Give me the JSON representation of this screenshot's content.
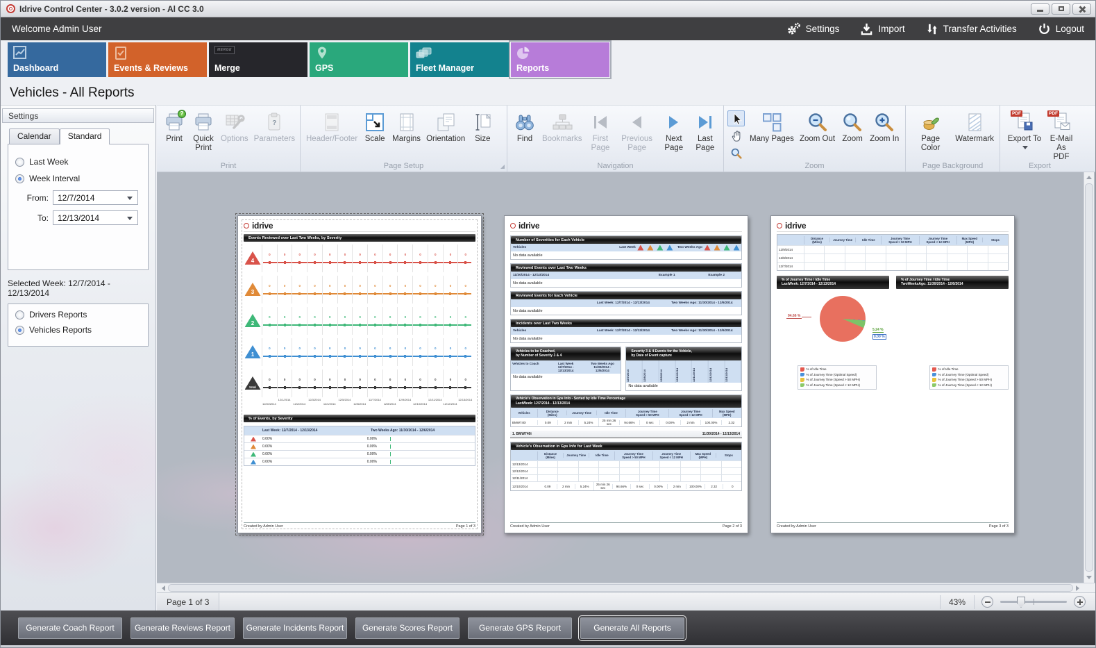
{
  "window": {
    "title": "Idrive Control Center - 3.0.2 version - Al CC 3.0"
  },
  "header": {
    "welcome": "Welcome Admin User",
    "settings": "Settings",
    "import": "Import",
    "transfer": "Transfer Activities",
    "logout": "Logout"
  },
  "tabs": [
    {
      "label": "Dashboard",
      "color": "#35699e"
    },
    {
      "label": "Events & Reviews",
      "color": "#d2622a"
    },
    {
      "label": "Merge",
      "color": "#26262b",
      "badge": "MERGE"
    },
    {
      "label": "GPS",
      "color": "#2aa87c"
    },
    {
      "label": "Fleet Manager",
      "color": "#13828e"
    },
    {
      "label": "Reports",
      "color": "#b77cd9"
    }
  ],
  "page_title": "Vehicles - All Reports",
  "sidebar": {
    "title": "Settings",
    "tab_calendar": "Calendar",
    "tab_standard": "Standard",
    "last_week": "Last Week",
    "week_interval": "Week Interval",
    "from_label": "From:",
    "from_value": "12/7/2014",
    "to_label": "To:",
    "to_value": "12/13/2014",
    "selected_week": "Selected Week: 12/7/2014 - 12/13/2014",
    "drivers": "Drivers Reports",
    "vehicles": "Vehicles Reports"
  },
  "ribbon": {
    "groups": [
      "Print",
      "Page Setup",
      "Navigation",
      "Zoom",
      "Page Background",
      "Export"
    ],
    "print": "Print",
    "quick_print": "Quick Print",
    "options": "Options",
    "parameters": "Parameters",
    "header_footer": "Header/Footer",
    "scale": "Scale",
    "margins": "Margins",
    "orientation": "Orientation",
    "size": "Size",
    "find": "Find",
    "bookmarks": "Bookmarks",
    "first_page": "First Page",
    "previous_page": "Previous Page",
    "next_page": "Next Page",
    "last_page": "Last Page",
    "many_pages": "Many Pages",
    "zoom_out": "Zoom Out",
    "zoom": "Zoom",
    "zoom_in": "Zoom In",
    "page_color": "Page Color",
    "watermark": "Watermark",
    "export_to": "Export To",
    "email_as_pdf": "E-Mail\nAs PDF",
    "pdf_badge": "PDF",
    "question_glyph": "?"
  },
  "brand": "idrive",
  "report1": {
    "banner": "Events Reviewed over Last Two Weeks, by Severity",
    "severities": [
      {
        "badge": "4"
      },
      {
        "badge": "3"
      },
      {
        "badge": "2"
      },
      {
        "badge": "1"
      },
      {
        "badge": "total"
      }
    ],
    "zeros": [
      "0",
      "0",
      "0",
      "0",
      "0",
      "0",
      "0",
      "0",
      "0",
      "0",
      "0",
      "0",
      "0",
      "0"
    ],
    "dates": [
      "11/30/2014",
      "12/1/2014",
      "12/2/2014",
      "12/3/2014",
      "12/4/2014",
      "12/5/2014",
      "12/6/2014",
      "12/7/2014",
      "12/8/2014",
      "12/9/2014",
      "12/10/2014",
      "12/11/2014",
      "12/12/2014",
      "12/13/2014"
    ],
    "banner2": "% of Events, by Severity",
    "col_last_week": "Last Week: 12/7/2014 - 12/13/2014",
    "col_two_weeks": "Two Weeks Ago: 11/30/2014 - 12/6/2014",
    "rows": [
      {
        "left": "0.00%",
        "right": "0.00%"
      },
      {
        "left": "0.00%",
        "right": "0.00%"
      },
      {
        "left": "0.00%",
        "right": "0.00%"
      },
      {
        "left": "0.00%",
        "right": "0.00%"
      }
    ],
    "footer_left": "Created by Admin User",
    "footer_right": "Page 1 of 3"
  },
  "report2": {
    "s1_title": "Number of Severities for Each Vehicle",
    "s1_vehicles": "Vehicles",
    "s1_last_week": "Last Week",
    "s1_two_weeks": "Two Weeks Ago",
    "no_data": "No data available",
    "s2_title": "Reviewed Events over Last Two Weeks",
    "s2_range": "11/30/2014 - 12/13/2014",
    "s2_example1": "Example 1",
    "s2_example2": "Example 2",
    "s3_title": "Reviewed Events for Each Vehicle",
    "s3_last_week": "Last Week: 12/7/2014 - 12/13/2014",
    "s3_two_weeks": "Two Weeks Ago: 11/30/2014 - 12/6/2014",
    "s4_title": "Incidents over Last Two Weeks",
    "s4_vehicles": "Vehicles",
    "s4_last_week": "Last Week: 12/7/2014 - 12/13/2014",
    "s4_two_weeks": "Two Weeks Ago: 11/30/2014 - 12/6/2014",
    "s5_title": "Vehicles to be Coached,\nby Number of Severity 3 & 4",
    "s5_col1": "Vehicles to Coach",
    "s5_col2": "Last Week\n12/7/2014 -\n12/13/2014",
    "s5_col3": "Two Weeks Ago\n11/30/2014 -\n12/6/2014",
    "s6_title": "Severity 3 & 4 Events for the Vehicle,\nby Date of Event capture",
    "s6_dates": [
      "12/7/2014",
      "12/8/2014",
      "12/9/2014",
      "12/10/2014",
      "12/11/2014",
      "12/12/2014",
      "12/13/2014"
    ],
    "s7_title": "Vehicle's Observation in Gps Info - Sorted by Idle Time Percentage\nLastWeek: 12/7/2014 - 12/13/2014",
    "gps_headers": [
      "Vehicles",
      "Distance\n(Miles)",
      "Journey Time",
      "Idle Time",
      "Journey Time\nSpeed > 50 MPH",
      "Journey Time\nSpeed < 12 MPH",
      "Max Speed\n(MPH)"
    ],
    "s7_row": [
      "BMW740i",
      "0.09",
      "2 min",
      "5.24%",
      "25 min 26\nsec",
      "94.66%",
      "0 sec",
      "0.00%",
      "2 min",
      "100.00%",
      "2.32"
    ],
    "s8_left": "1. BMW740i",
    "s8_right": "11/30/2014 - 12/13/2014",
    "s9_title": "Vehicle's Observation in Gps Info for Last Week",
    "gps2_headers": [
      "",
      "Distance\n(Miles)",
      "Journey Time",
      "Idle Time",
      "Journey Time\nSpeed > 50 MPH",
      "Journey Time\nSpeed < 12 MPH",
      "Max Speed\n(MPH)",
      "Stops"
    ],
    "s9_empty_dates": [
      "12/13/2014",
      "12/12/2014",
      "12/11/2014"
    ],
    "s9_row_date": "12/10/2014",
    "s9_row": [
      "0.09",
      "2 min",
      "5.24%",
      "25 min 26\nsec",
      "94.66%",
      "0 sec",
      "0.00%",
      "2 min",
      "100.00%",
      "2.32",
      "0"
    ],
    "footer_left": "Created by Admin User",
    "footer_right": "Page 2 of 3"
  },
  "report3": {
    "empty_dates": [
      "12/9/2014",
      "12/8/2014",
      "12/7/2014"
    ],
    "banner_left": "% of Journey Time / Idle Time\nLastWeek: 12/7/2014 - 12/13/2014",
    "banner_right": "% of Journey Time / Idle Time\nTwoWeeksAgo: 11/30/2014 - 12/6/2014",
    "pie_labels": {
      "idle": "94.66 %",
      "under12": "5.24 %",
      "optimal": "0.00 %"
    },
    "pie_values": {
      "idle": 94.66,
      "under12": 5.24,
      "optimal": 0.0
    },
    "legend": [
      "% of Idle Time",
      "% of Journey Time (Optimal Speed)",
      "% of Journey Time (Speed > 50 MPH)",
      "% of Journey Time (Speed < 12 MPH)"
    ],
    "legend_colors": [
      "#e4584e",
      "#4a90d9",
      "#e8c33c",
      "#8cc968"
    ],
    "footer_left": "Created by Admin User",
    "footer_right": "Page 3 of 3"
  },
  "statusbar": {
    "page_label": "Page 1 of 3",
    "zoom_value": "43%"
  },
  "bottombar": {
    "buttons": [
      "Generate Coach Report",
      "Generate Reviews Report",
      "Generate Incidents Report",
      "Generate Scores Report",
      "Generate GPS Report",
      "Generate All Reports"
    ],
    "focused": "Generate All Reports"
  }
}
